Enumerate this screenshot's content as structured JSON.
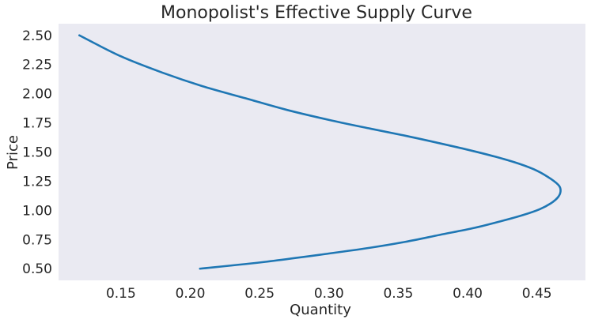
{
  "chart_data": {
    "type": "line",
    "title": "Monopolist's Effective Supply Curve",
    "xlabel": "Quantity",
    "ylabel": "Price",
    "xlim": [
      0.105,
      0.485
    ],
    "ylim": [
      0.4,
      2.6
    ],
    "xticks": [
      0.15,
      0.2,
      0.25,
      0.3,
      0.35,
      0.4,
      0.45
    ],
    "xtick_labels": [
      "0.15",
      "0.20",
      "0.25",
      "0.30",
      "0.35",
      "0.40",
      "0.45"
    ],
    "yticks": [
      0.5,
      0.75,
      1.0,
      1.25,
      1.5,
      1.75,
      2.0,
      2.25,
      2.5
    ],
    "ytick_labels": [
      "0.50",
      "0.75",
      "1.00",
      "1.25",
      "1.50",
      "1.75",
      "2.00",
      "2.25",
      "2.50"
    ],
    "grid": false,
    "background_color": "#eaeaf2",
    "series": [
      {
        "color": "#1f77b4",
        "x": [
          0.207,
          0.255,
          0.3,
          0.33,
          0.355,
          0.38,
          0.405,
          0.425,
          0.44,
          0.452,
          0.46,
          0.465,
          0.467,
          0.466,
          0.46,
          0.45,
          0.437,
          0.42,
          0.4,
          0.378,
          0.355,
          0.33,
          0.302,
          0.27,
          0.24,
          0.21,
          0.18,
          0.15,
          0.12
        ],
        "y": [
          0.5,
          0.56,
          0.63,
          0.68,
          0.73,
          0.79,
          0.85,
          0.91,
          0.96,
          1.01,
          1.06,
          1.11,
          1.16,
          1.21,
          1.27,
          1.34,
          1.4,
          1.46,
          1.52,
          1.58,
          1.64,
          1.7,
          1.77,
          1.86,
          1.96,
          2.06,
          2.18,
          2.32,
          2.5
        ]
      }
    ]
  }
}
